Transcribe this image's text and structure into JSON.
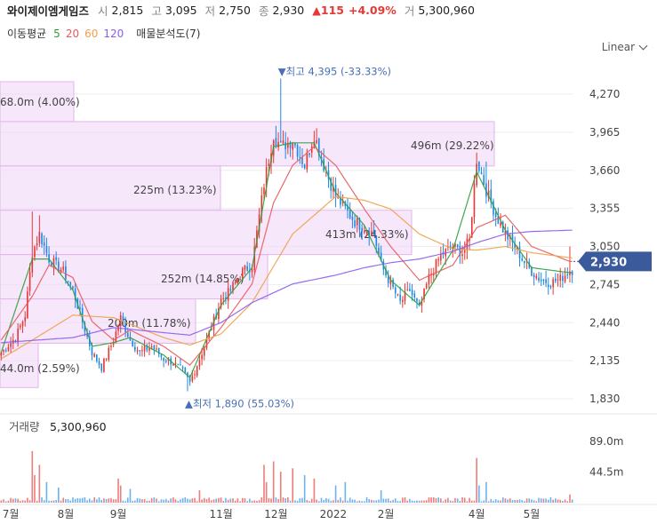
{
  "header": {
    "name": "와이제이엠게임즈",
    "open_label": "시",
    "open": "2,815",
    "high_label": "고",
    "high": "3,095",
    "low_label": "저",
    "low": "2,750",
    "close_label": "종",
    "close": "2,930",
    "change": "▲115",
    "change_pct": "+4.09%",
    "vol_label": "거",
    "volume": "5,300,960"
  },
  "indicators": {
    "ma_label": "이동평균",
    "ma": [
      {
        "period": "5",
        "color": "#2e9d3a"
      },
      {
        "period": "20",
        "color": "#e85a5a"
      },
      {
        "period": "60",
        "color": "#f0a04a"
      },
      {
        "period": "120",
        "color": "#8a5cf0"
      }
    ],
    "vp_label": "매물분석도(7)"
  },
  "scale_mode": "Linear",
  "colors": {
    "up": "#e53935",
    "down": "#1e88e5",
    "vp": "#efd3f5"
  },
  "chart_data": {
    "type": "candlestick",
    "y_ticks": [
      "4,270",
      "3,965",
      "3,660",
      "3,355",
      "3,050",
      "2,745",
      "2,440",
      "2,135",
      "1,830"
    ],
    "y_range": [
      1830,
      4270
    ],
    "x_ticks": [
      "7월",
      "8월",
      "9월",
      "11월",
      "12월",
      "2022",
      "2월",
      "4월",
      "5월"
    ],
    "x_tick_index": [
      4,
      27,
      49,
      92,
      115,
      139,
      161,
      199,
      222
    ],
    "current_price": "2,930",
    "current_value": 2930,
    "max_label": "▼최고 4,395 (-33.33%)",
    "max_value": 4395,
    "max_index": 117,
    "min_label": "▲최저 1,890 (55.03%)",
    "min_value": 1890,
    "min_index": 78,
    "volume_label": "거래량",
    "volume_value": "5,300,960",
    "volume_ticks": [
      "89.0m",
      "44.5m"
    ],
    "volume_tick_values": [
      89.0,
      44.5
    ],
    "volume_profile": [
      {
        "label": "68.0m (4.00%)",
        "low": 4050,
        "high": 4370,
        "share": 4.0
      },
      {
        "label": "496m (29.22%)",
        "low": 3695,
        "high": 4050,
        "share": 29.22
      },
      {
        "label": "225m (13.23%)",
        "low": 3340,
        "high": 3695,
        "share": 13.23
      },
      {
        "label": "413m (24.33%)",
        "low": 2985,
        "high": 3340,
        "share": 24.33
      },
      {
        "label": "252m (14.85%)",
        "low": 2630,
        "high": 2985,
        "share": 14.85
      },
      {
        "label": "200m (11.78%)",
        "low": 2275,
        "high": 2630,
        "share": 11.78
      },
      {
        "label": "44.0m (2.59%)",
        "low": 1920,
        "high": 2275,
        "share": 2.59
      }
    ],
    "price_anchors": [
      [
        0,
        2200
      ],
      [
        6,
        2320
      ],
      [
        10,
        2500
      ],
      [
        13,
        3000
      ],
      [
        16,
        3150
      ],
      [
        20,
        2950
      ],
      [
        26,
        2850
      ],
      [
        30,
        2700
      ],
      [
        34,
        2450
      ],
      [
        38,
        2200
      ],
      [
        42,
        2080
      ],
      [
        47,
        2300
      ],
      [
        50,
        2480
      ],
      [
        54,
        2300
      ],
      [
        58,
        2200
      ],
      [
        63,
        2250
      ],
      [
        68,
        2150
      ],
      [
        72,
        2120
      ],
      [
        76,
        2050
      ],
      [
        79,
        1960
      ],
      [
        83,
        2150
      ],
      [
        87,
        2350
      ],
      [
        92,
        2620
      ],
      [
        96,
        2700
      ],
      [
        101,
        2850
      ],
      [
        105,
        2900
      ],
      [
        110,
        3550
      ],
      [
        114,
        3950
      ],
      [
        117,
        3850
      ],
      [
        122,
        3900
      ],
      [
        127,
        3700
      ],
      [
        131,
        3950
      ],
      [
        135,
        3700
      ],
      [
        140,
        3450
      ],
      [
        144,
        3350
      ],
      [
        148,
        3250
      ],
      [
        152,
        3200
      ],
      [
        156,
        3150
      ],
      [
        159,
        2900
      ],
      [
        163,
        2750
      ],
      [
        167,
        2600
      ],
      [
        171,
        2700
      ],
      [
        175,
        2550
      ],
      [
        179,
        2800
      ],
      [
        184,
        2980
      ],
      [
        189,
        3050
      ],
      [
        193,
        3000
      ],
      [
        196,
        3100
      ],
      [
        199,
        3750
      ],
      [
        203,
        3500
      ],
      [
        207,
        3300
      ],
      [
        211,
        3150
      ],
      [
        215,
        3050
      ],
      [
        218,
        2950
      ],
      [
        222,
        2850
      ],
      [
        226,
        2780
      ],
      [
        230,
        2760
      ],
      [
        234,
        2790
      ],
      [
        238,
        2860
      ]
    ],
    "ma_anchors": {
      "5": [
        [
          0,
          2200
        ],
        [
          13,
          2950
        ],
        [
          20,
          2950
        ],
        [
          30,
          2700
        ],
        [
          38,
          2250
        ],
        [
          47,
          2280
        ],
        [
          54,
          2320
        ],
        [
          68,
          2180
        ],
        [
          79,
          2000
        ],
        [
          92,
          2580
        ],
        [
          105,
          2880
        ],
        [
          114,
          3850
        ],
        [
          122,
          3880
        ],
        [
          131,
          3880
        ],
        [
          140,
          3480
        ],
        [
          152,
          3220
        ],
        [
          163,
          2780
        ],
        [
          175,
          2580
        ],
        [
          189,
          3020
        ],
        [
          199,
          3650
        ],
        [
          211,
          3180
        ],
        [
          222,
          2880
        ],
        [
          238,
          2840
        ]
      ],
      "20": [
        [
          0,
          2300
        ],
        [
          13,
          2650
        ],
        [
          20,
          2900
        ],
        [
          30,
          2800
        ],
        [
          38,
          2450
        ],
        [
          47,
          2300
        ],
        [
          54,
          2380
        ],
        [
          68,
          2250
        ],
        [
          79,
          2100
        ],
        [
          92,
          2400
        ],
        [
          105,
          2750
        ],
        [
          114,
          3400
        ],
        [
          122,
          3700
        ],
        [
          131,
          3850
        ],
        [
          140,
          3700
        ],
        [
          152,
          3350
        ],
        [
          163,
          3050
        ],
        [
          175,
          2780
        ],
        [
          189,
          2900
        ],
        [
          199,
          3200
        ],
        [
          211,
          3300
        ],
        [
          222,
          3050
        ],
        [
          238,
          2930
        ]
      ],
      "60": [
        [
          0,
          2150
        ],
        [
          13,
          2300
        ],
        [
          30,
          2500
        ],
        [
          47,
          2480
        ],
        [
          68,
          2320
        ],
        [
          79,
          2260
        ],
        [
          92,
          2350
        ],
        [
          105,
          2600
        ],
        [
          122,
          3150
        ],
        [
          140,
          3450
        ],
        [
          152,
          3420
        ],
        [
          163,
          3350
        ],
        [
          175,
          3150
        ],
        [
          189,
          3030
        ],
        [
          199,
          3020
        ],
        [
          211,
          3050
        ],
        [
          222,
          3000
        ],
        [
          238,
          2960
        ]
      ],
      "120": [
        [
          0,
          2280
        ],
        [
          30,
          2320
        ],
        [
          47,
          2400
        ],
        [
          68,
          2360
        ],
        [
          79,
          2340
        ],
        [
          92,
          2440
        ],
        [
          105,
          2600
        ],
        [
          122,
          2750
        ],
        [
          140,
          2820
        ],
        [
          152,
          2880
        ],
        [
          163,
          2920
        ],
        [
          175,
          2950
        ],
        [
          189,
          3010
        ],
        [
          199,
          3080
        ],
        [
          211,
          3150
        ],
        [
          222,
          3170
        ],
        [
          238,
          3180
        ]
      ]
    }
  }
}
